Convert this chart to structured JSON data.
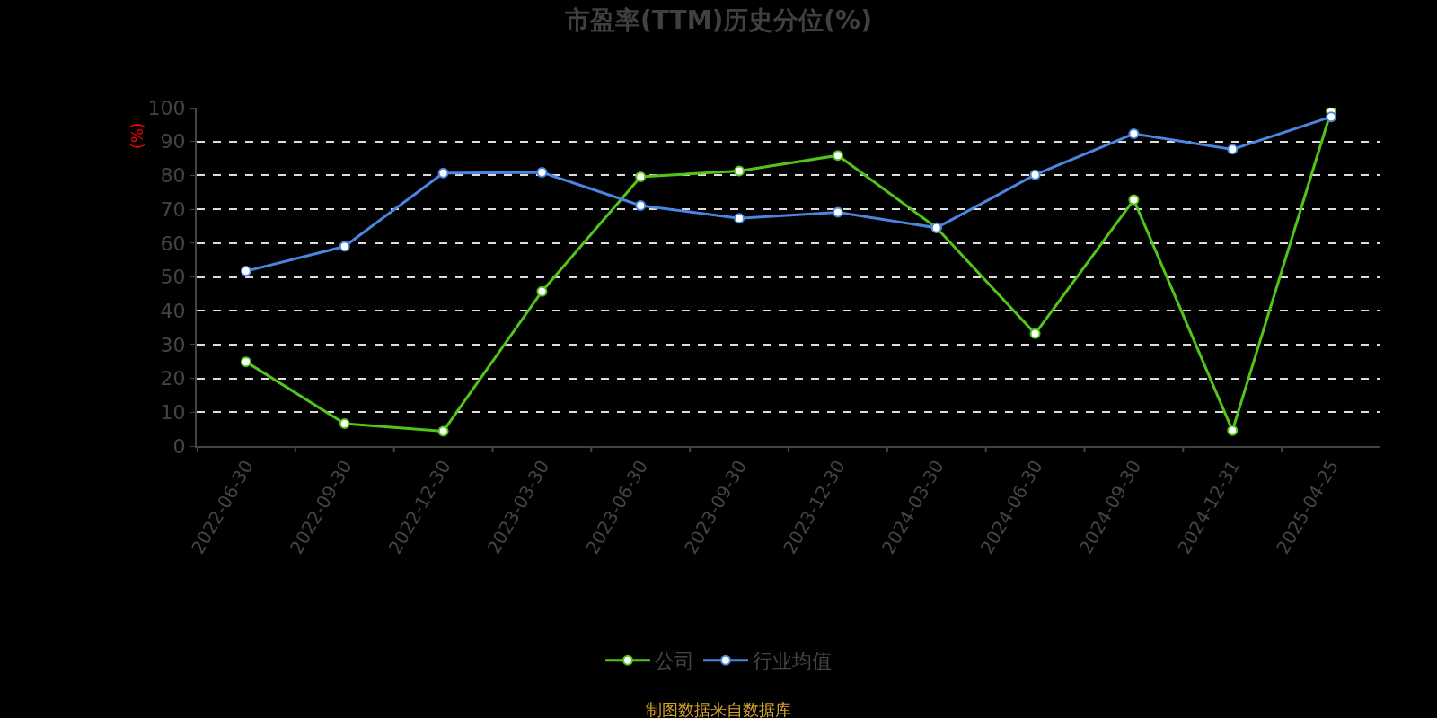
{
  "chart_data": {
    "type": "line",
    "title": "市盈率(TTM)历史分位(%)",
    "ylabel": "(%)",
    "categories": [
      "2022-06-30",
      "2022-09-30",
      "2022-12-30",
      "2023-03-30",
      "2023-06-30",
      "2023-09-30",
      "2023-12-30",
      "2024-03-30",
      "2024-06-30",
      "2024-09-30",
      "2024-12-31",
      "2025-04-25"
    ],
    "series": [
      {
        "name": "公司",
        "color": "#52c41a",
        "values": [
          24.9,
          6.6,
          4.4,
          45.7,
          79.6,
          81.3,
          85.9,
          64.5,
          33.2,
          72.8,
          4.6,
          99.0
        ]
      },
      {
        "name": "行业均值",
        "color": "#4a86e0",
        "values": [
          51.7,
          59.0,
          80.7,
          80.9,
          71.1,
          67.3,
          69.1,
          64.5,
          80.2,
          92.3,
          87.7,
          97.3
        ]
      }
    ],
    "ylim": [
      0,
      100
    ],
    "yticks": [
      0,
      10,
      20,
      30,
      40,
      50,
      60,
      70,
      80,
      90,
      100
    ],
    "grid": "y",
    "legend": "bottom",
    "marker": "circle",
    "line_style": "solid",
    "annotations": [
      "制图数据来自数据库"
    ]
  }
}
